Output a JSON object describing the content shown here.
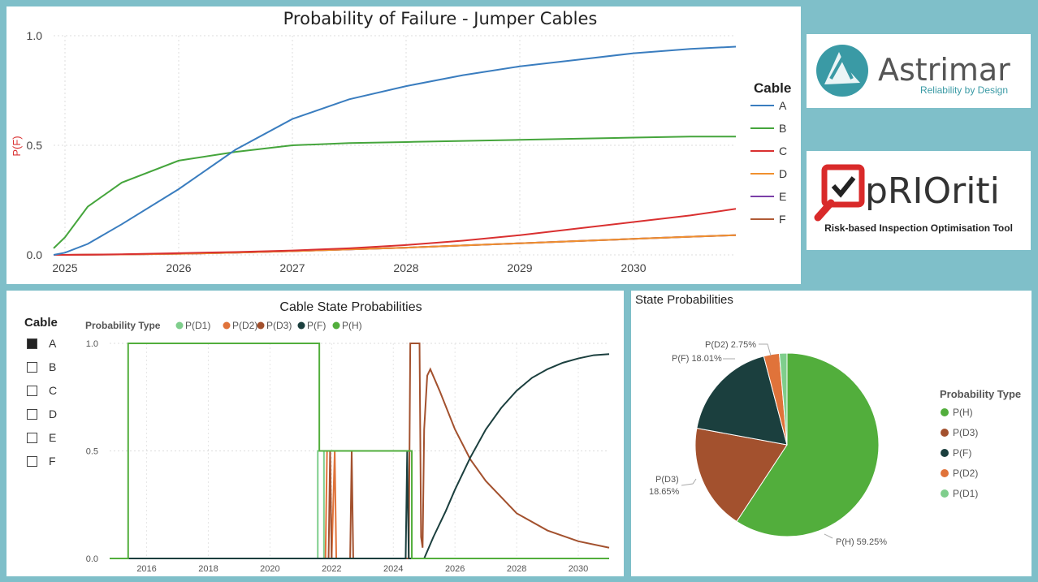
{
  "top_chart": {
    "title": "Probability of Failure - Jumper Cables",
    "ylabel": "P(F)",
    "legend_title": "Cable",
    "y_ticks": [
      "0.0",
      "0.5",
      "1.0"
    ],
    "x_ticks": [
      "2025",
      "2026",
      "2027",
      "2028",
      "2029",
      "2030"
    ]
  },
  "logos": {
    "astrimar_name": "Astrimar",
    "astrimar_tagline": "Reliability by Design",
    "priority_name": "pRIOriti",
    "priority_tagline": "Risk-based Inspection Optimisation Tool"
  },
  "bottom_left": {
    "title": "Cable State Probabilities",
    "slicer_title": "Cable",
    "slicer_items": [
      {
        "label": "A",
        "checked": true
      },
      {
        "label": "B",
        "checked": false
      },
      {
        "label": "C",
        "checked": false
      },
      {
        "label": "D",
        "checked": false
      },
      {
        "label": "E",
        "checked": false
      },
      {
        "label": "F",
        "checked": false
      }
    ],
    "legend_prefix": "Probability Type",
    "legend_items": [
      "P(D1)",
      "P(D2)",
      "P(D3)",
      "P(F)",
      "P(H)"
    ],
    "y_ticks": [
      "0.0",
      "0.5",
      "1.0"
    ],
    "x_ticks": [
      "2016",
      "2018",
      "2020",
      "2022",
      "2024",
      "2026",
      "2028",
      "2030"
    ]
  },
  "bottom_right": {
    "title": "State Probabilities",
    "legend_title": "Probability Type",
    "legend_items": [
      "P(H)",
      "P(D3)",
      "P(F)",
      "P(D2)",
      "P(D1)"
    ],
    "labels": {
      "h": "P(H) 59.25%",
      "d3_line1": "P(D3)",
      "d3_line2": "18.65%",
      "f": "P(F) 18.01%",
      "d2": "P(D2) 2.75%"
    }
  },
  "colors": {
    "A": "#3a7dbf",
    "B": "#45a53c",
    "C": "#d93030",
    "D": "#f0902e",
    "E": "#7b3fa8",
    "F": "#b05a35",
    "PD1": "#7fce8c",
    "PD2": "#e0733a",
    "PD3": "#a3512e",
    "PF": "#1b3f3e",
    "PH": "#52ae3c"
  },
  "chart_data": [
    {
      "type": "line",
      "title": "Probability of Failure - Jumper Cables",
      "xlabel": "",
      "ylabel": "P(F)",
      "ylim": [
        0,
        1
      ],
      "x": [
        2024.9,
        2025.0,
        2025.2,
        2025.5,
        2026.0,
        2026.5,
        2027.0,
        2027.5,
        2028.0,
        2028.5,
        2029.0,
        2029.5,
        2030.0,
        2030.5,
        2030.9
      ],
      "series": [
        {
          "name": "A",
          "values": [
            0.0,
            0.01,
            0.05,
            0.14,
            0.3,
            0.48,
            0.62,
            0.71,
            0.77,
            0.82,
            0.86,
            0.89,
            0.92,
            0.94,
            0.95
          ]
        },
        {
          "name": "B",
          "values": [
            0.03,
            0.08,
            0.22,
            0.33,
            0.43,
            0.47,
            0.5,
            0.51,
            0.515,
            0.52,
            0.525,
            0.53,
            0.535,
            0.54,
            0.54
          ]
        },
        {
          "name": "C",
          "values": [
            0.0,
            0.0,
            0.001,
            0.003,
            0.008,
            0.013,
            0.02,
            0.03,
            0.045,
            0.065,
            0.09,
            0.12,
            0.15,
            0.18,
            0.21
          ]
        },
        {
          "name": "D",
          "values": [
            0.0,
            0.0,
            0.001,
            0.002,
            0.005,
            0.01,
            0.017,
            0.025,
            0.033,
            0.043,
            0.053,
            0.063,
            0.073,
            0.083,
            0.09
          ]
        },
        {
          "name": "E",
          "values": [
            0.0,
            0.0,
            0.001,
            0.002,
            0.005,
            0.01,
            0.017,
            0.025,
            0.033,
            0.043,
            0.053,
            0.063,
            0.073,
            0.083,
            0.09
          ]
        },
        {
          "name": "F",
          "values": [
            0.0,
            0.0,
            0.001,
            0.002,
            0.005,
            0.01,
            0.017,
            0.025,
            0.033,
            0.043,
            0.053,
            0.063,
            0.073,
            0.083,
            0.09
          ]
        }
      ]
    },
    {
      "type": "line",
      "title": "Cable State Probabilities",
      "xlabel": "",
      "ylabel": "",
      "ylim": [
        0,
        1
      ],
      "series": [
        {
          "name": "P(H)",
          "points": [
            [
              2014.8,
              0
            ],
            [
              2015.4,
              0
            ],
            [
              2015.4,
              1
            ],
            [
              2021.6,
              1
            ],
            [
              2021.6,
              0.5
            ],
            [
              2024.6,
              0.5
            ],
            [
              2024.6,
              0
            ],
            [
              2031,
              0
            ]
          ]
        },
        {
          "name": "P(D1)",
          "points": [
            [
              2014.8,
              0
            ],
            [
              2021.55,
              0
            ],
            [
              2021.55,
              0.5
            ],
            [
              2021.75,
              0.5
            ],
            [
              2021.75,
              0
            ],
            [
              2031,
              0
            ]
          ]
        },
        {
          "name": "P(D2)",
          "points": [
            [
              2014.8,
              0
            ],
            [
              2021.8,
              0
            ],
            [
              2021.85,
              0.5
            ],
            [
              2021.95,
              0.5
            ],
            [
              2022.0,
              0
            ],
            [
              2022.1,
              0.5
            ],
            [
              2022.15,
              0
            ],
            [
              2031,
              0
            ]
          ]
        },
        {
          "name": "P(D3)",
          "points": [
            [
              2014.8,
              0
            ],
            [
              2021.9,
              0
            ],
            [
              2021.95,
              0.5
            ],
            [
              2022.0,
              0
            ],
            [
              2022.6,
              0
            ],
            [
              2022.65,
              0.5
            ],
            [
              2022.7,
              0
            ],
            [
              2024.5,
              0
            ],
            [
              2024.55,
              1
            ],
            [
              2024.85,
              1
            ],
            [
              2024.9,
              0.1
            ],
            [
              2024.95,
              0.05
            ],
            [
              2025.0,
              0.6
            ],
            [
              2025.1,
              0.85
            ],
            [
              2025.2,
              0.88
            ],
            [
              2025.5,
              0.78
            ],
            [
              2026.0,
              0.6
            ],
            [
              2026.5,
              0.46
            ],
            [
              2027.0,
              0.36
            ],
            [
              2028.0,
              0.21
            ],
            [
              2029.0,
              0.13
            ],
            [
              2030.0,
              0.08
            ],
            [
              2031.0,
              0.05
            ]
          ]
        },
        {
          "name": "P(F)",
          "points": [
            [
              2014.8,
              0
            ],
            [
              2024.4,
              0
            ],
            [
              2024.45,
              0.5
            ],
            [
              2024.5,
              0
            ],
            [
              2025.0,
              0
            ],
            [
              2025.3,
              0.1
            ],
            [
              2025.7,
              0.22
            ],
            [
              2026.0,
              0.32
            ],
            [
              2026.5,
              0.47
            ],
            [
              2027.0,
              0.6
            ],
            [
              2027.5,
              0.7
            ],
            [
              2028.0,
              0.78
            ],
            [
              2028.5,
              0.84
            ],
            [
              2029.0,
              0.88
            ],
            [
              2029.5,
              0.91
            ],
            [
              2030.0,
              0.93
            ],
            [
              2030.5,
              0.945
            ],
            [
              2031.0,
              0.95
            ]
          ]
        }
      ]
    },
    {
      "type": "pie",
      "title": "State Probabilities",
      "categories": [
        "P(H)",
        "P(D3)",
        "P(F)",
        "P(D2)",
        "P(D1)"
      ],
      "values": [
        59.25,
        18.65,
        18.01,
        2.75,
        1.34
      ]
    }
  ]
}
